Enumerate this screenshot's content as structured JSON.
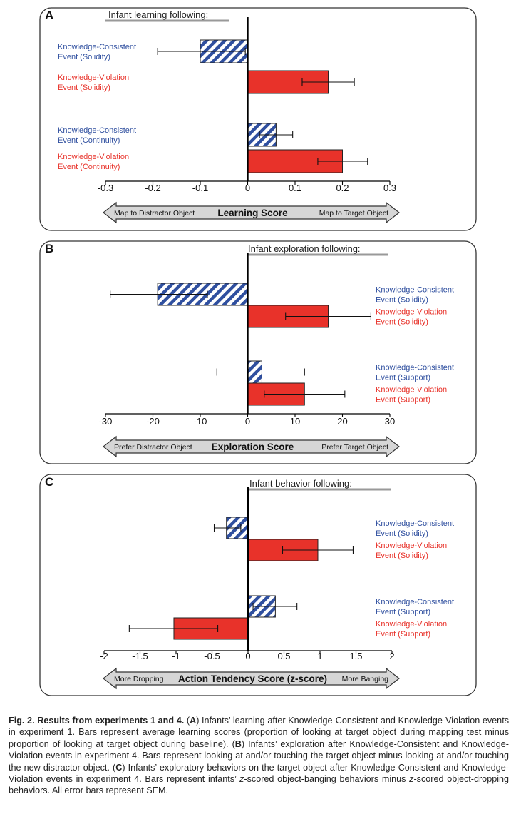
{
  "colors": {
    "blue": "#2f4f9f",
    "red": "#e8322a",
    "stripe_light": "#ffffff",
    "frame": "#333333",
    "arrow_fill": "#d6d6d6",
    "header_rule": "#999999"
  },
  "chart_data": [
    {
      "panel": "A",
      "type": "bar",
      "orientation": "horizontal",
      "title": "Infant learning following:",
      "xlabel": "Learning Score",
      "arrow_left": "Map to Distractor Object",
      "arrow_right": "Map to Target Object",
      "xlim": [
        -0.3,
        0.3
      ],
      "ticks": [
        -0.3,
        -0.2,
        -0.1,
        0,
        0.1,
        0.2,
        0.3
      ],
      "tick_labels": [
        "-0.3",
        "-0.2",
        "-0.1",
        "0",
        "0.1",
        "0.2",
        "0.3"
      ],
      "label_side": "left",
      "bars": [
        {
          "label1": "Knowledge-Consistent",
          "label2": "Event (Solidity)",
          "kind": "consistent",
          "value": -0.1,
          "err_low": -0.19,
          "err_high": -0.005,
          "group": 0
        },
        {
          "label1": "Knowledge-Violation",
          "label2": "Event (Solidity)",
          "kind": "violation",
          "value": 0.17,
          "err_low": 0.115,
          "err_high": 0.225,
          "group": 0
        },
        {
          "label1": "Knowledge-Consistent",
          "label2": "Event (Continuity)",
          "kind": "consistent",
          "value": 0.06,
          "err_low": 0.025,
          "err_high": 0.095,
          "group": 1
        },
        {
          "label1": "Knowledge-Violation",
          "label2": "Event (Continuity)",
          "kind": "violation",
          "value": 0.2,
          "err_low": 0.148,
          "err_high": 0.253,
          "group": 1
        }
      ]
    },
    {
      "panel": "B",
      "type": "bar",
      "orientation": "horizontal",
      "title": "Infant exploration following:",
      "xlabel": "Exploration Score",
      "arrow_left": "Prefer Distractor Object",
      "arrow_right": "Prefer Target Object",
      "xlim": [
        -30,
        30
      ],
      "ticks": [
        -30,
        -20,
        -10,
        0,
        10,
        20,
        30
      ],
      "tick_labels": [
        "-30",
        "-20",
        "-10",
        "0",
        "10",
        "20",
        "30"
      ],
      "label_side": "right",
      "bars": [
        {
          "label1": "Knowledge-Consistent",
          "label2": "Event (Solidity)",
          "kind": "consistent",
          "value": -19,
          "err_low": -29,
          "err_high": -8.5,
          "group": 0
        },
        {
          "label1": "Knowledge-Violation",
          "label2": "Event (Solidity)",
          "kind": "violation",
          "value": 17,
          "err_low": 8,
          "err_high": 26,
          "group": 0
        },
        {
          "label1": "Knowledge-Consistent",
          "label2": "Event (Support)",
          "kind": "consistent",
          "value": 3,
          "err_low": -6.5,
          "err_high": 12,
          "group": 1
        },
        {
          "label1": "Knowledge-Violation",
          "label2": "Event (Support)",
          "kind": "violation",
          "value": 12,
          "err_low": 3.5,
          "err_high": 20.5,
          "group": 1
        }
      ]
    },
    {
      "panel": "C",
      "type": "bar",
      "orientation": "horizontal",
      "title": "Infant behavior following:",
      "xlabel": "Action Tendency Score (z-score)",
      "arrow_left": "More Dropping",
      "arrow_right": "More Banging",
      "xlim": [
        -2,
        2
      ],
      "ticks": [
        -2,
        -1.5,
        -1,
        -0.5,
        0,
        0.5,
        1,
        1.5,
        2
      ],
      "tick_labels": [
        "-2",
        "-1.5",
        "-1",
        "-0.5",
        "0",
        "0.5",
        "1",
        "1.5",
        "2"
      ],
      "label_side": "right",
      "bars": [
        {
          "label1": "Knowledge-Consistent",
          "label2": "Event (Solidity)",
          "kind": "consistent",
          "value": -0.3,
          "err_low": -0.47,
          "err_high": -0.1,
          "group": 0
        },
        {
          "label1": "Knowledge-Violation",
          "label2": "Event (Solidity)",
          "kind": "violation",
          "value": 0.97,
          "err_low": 0.48,
          "err_high": 1.46,
          "group": 0
        },
        {
          "label1": "Knowledge-Consistent",
          "label2": "Event (Support)",
          "kind": "consistent",
          "value": 0.38,
          "err_low": 0.07,
          "err_high": 0.68,
          "group": 1
        },
        {
          "label1": "Knowledge-Violation",
          "label2": "Event (Support)",
          "kind": "violation",
          "value": -1.03,
          "err_low": -1.65,
          "err_high": -0.42,
          "group": 1
        }
      ]
    }
  ],
  "caption": {
    "fig_label": "Fig. 2. Results from experiments 1 and 4.",
    "s1_open": " (",
    "s1_letter": "A",
    "s1_text": ") Infants’ learning after Knowledge-Consistent and Knowledge-Violation events in experiment 1. Bars represent average learning scores (proportion of looking at target object during mapping test minus proportion of looking at target object during baseline). (",
    "s2_letter": "B",
    "s2_text": ") Infants’ exploration after Knowledge-Consistent and Knowledge-Violation events in experiment 4. Bars represent looking at and/or touching the target object minus looking at and/or touching the new distractor object. (",
    "s3_letter": "C",
    "s3_text": ") Infants’ exploratory behaviors on the target object after Knowledge-Consistent and Knowledge-Violation events in experiment 4. Bars represent infants’ ",
    "z1": "z",
    "s3_mid": "-scored object-banging behaviors minus ",
    "z2": "z",
    "s3_end": "-scored object-dropping behaviors. All error bars represent SEM."
  }
}
